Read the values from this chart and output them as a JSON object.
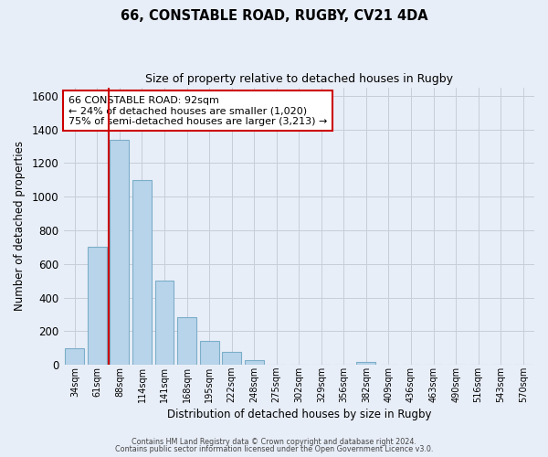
{
  "title": "66, CONSTABLE ROAD, RUGBY, CV21 4DA",
  "subtitle": "Size of property relative to detached houses in Rugby",
  "xlabel": "Distribution of detached houses by size in Rugby",
  "ylabel": "Number of detached properties",
  "bar_labels": [
    "34sqm",
    "61sqm",
    "88sqm",
    "114sqm",
    "141sqm",
    "168sqm",
    "195sqm",
    "222sqm",
    "248sqm",
    "275sqm",
    "302sqm",
    "329sqm",
    "356sqm",
    "382sqm",
    "409sqm",
    "436sqm",
    "463sqm",
    "490sqm",
    "516sqm",
    "543sqm",
    "570sqm"
  ],
  "bar_values": [
    100,
    700,
    1340,
    1100,
    500,
    285,
    140,
    75,
    30,
    0,
    0,
    0,
    0,
    15,
    0,
    0,
    0,
    0,
    0,
    0,
    0
  ],
  "bar_color": "#b8d4ea",
  "bar_edge_color": "#7baec8",
  "highlight_bar_index": 2,
  "highlight_line_color": "#cc0000",
  "annotation_text": "66 CONSTABLE ROAD: 92sqm\n← 24% of detached houses are smaller (1,020)\n75% of semi-detached houses are larger (3,213) →",
  "annotation_box_color": "#ffffff",
  "annotation_box_edge": "#cc0000",
  "ylim": [
    0,
    1650
  ],
  "yticks": [
    0,
    200,
    400,
    600,
    800,
    1000,
    1200,
    1400,
    1600
  ],
  "background_color": "#e8eef8",
  "grid_color": "#c8cdd8",
  "footer_line1": "Contains HM Land Registry data © Crown copyright and database right 2024.",
  "footer_line2": "Contains public sector information licensed under the Open Government Licence v3.0."
}
